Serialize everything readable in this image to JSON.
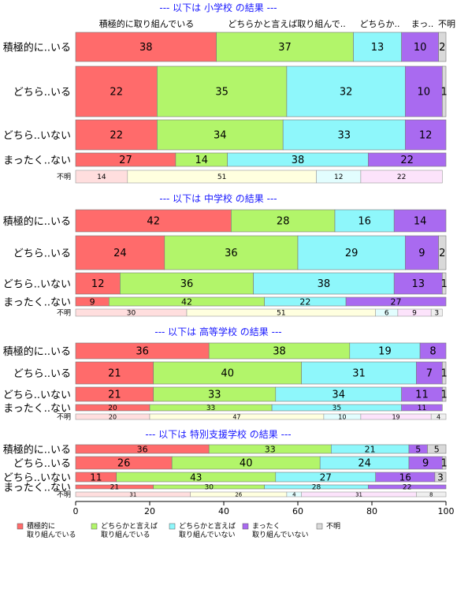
{
  "chart_data": {
    "type": "bar",
    "orientation": "horizontal",
    "stacked": true,
    "xlim": [
      0,
      100
    ],
    "x_ticks": [
      "0",
      "20",
      "40",
      "60",
      "80",
      "100"
    ],
    "column_headers": [
      "積極的に取り組んでいる",
      "どちらかと言えば取り組んで..",
      "どちらか..",
      "まっ..",
      "不明"
    ],
    "legend": [
      {
        "label_lines": [
          "積極的に",
          "取り組んでいる"
        ],
        "color": "#ff6b6b"
      },
      {
        "label_lines": [
          "どちらかと言えば",
          "取り組んでいる"
        ],
        "color": "#b2f56a"
      },
      {
        "label_lines": [
          "どちらかと言えば",
          "取り組んでいない"
        ],
        "color": "#8ef7fb"
      },
      {
        "label_lines": [
          "まったく",
          "取り組んでいない"
        ],
        "color": "#a96af0"
      },
      {
        "label_lines": [
          "不明"
        ],
        "color": "#d9d9d9"
      }
    ],
    "panels": [
      {
        "title": "--- 以下は 小学校 の結果 ---",
        "rows": [
          {
            "label": "積極的に..いる",
            "values": [
              38,
              37,
              13,
              10,
              2
            ],
            "labels": [
              "38",
              "37",
              "13",
              "10",
              "2"
            ]
          },
          {
            "label": "どちら..いる",
            "values": [
              22,
              35,
              32,
              10,
              1
            ],
            "labels": [
              "22",
              "35",
              "32",
              "10",
              "1"
            ]
          },
          {
            "label": "どちら..いない",
            "values": [
              22,
              34,
              33,
              12,
              0
            ],
            "labels": [
              "22",
              "34",
              "33",
              "12",
              ""
            ]
          },
          {
            "label": "まったく..ない",
            "values": [
              27,
              14,
              38,
              22,
              0
            ],
            "labels": [
              "27",
              "14",
              "38",
              "22",
              ""
            ]
          },
          {
            "label": "不明",
            "values": [
              14,
              51,
              12,
              22,
              0
            ],
            "labels": [
              "14",
              "51",
              "12",
              "22",
              ""
            ],
            "pale": true
          }
        ]
      },
      {
        "title": "--- 以下は 中学校 の結果 ---",
        "rows": [
          {
            "label": "積極的に..いる",
            "values": [
              42,
              28,
              16,
              14,
              0
            ],
            "labels": [
              "42",
              "28",
              "16",
              "14",
              ""
            ]
          },
          {
            "label": "どちら..いる",
            "values": [
              24,
              36,
              29,
              9,
              2
            ],
            "labels": [
              "24",
              "36",
              "29",
              "9",
              "2"
            ]
          },
          {
            "label": "どちら..いない",
            "values": [
              12,
              36,
              38,
              13,
              1
            ],
            "labels": [
              "12",
              "36",
              "38",
              "13",
              "1"
            ]
          },
          {
            "label": "まったく..ない",
            "values": [
              9,
              42,
              22,
              27,
              0
            ],
            "labels": [
              "9",
              "42",
              "22",
              "27",
              ""
            ]
          },
          {
            "label": "不明",
            "values": [
              30,
              51,
              6,
              9,
              3
            ],
            "labels": [
              "30",
              "51",
              "6",
              "9",
              "3"
            ],
            "pale": true
          }
        ]
      },
      {
        "title": "--- 以下は 高等学校 の結果 ---",
        "rows": [
          {
            "label": "積極的に..いる",
            "values": [
              36,
              38,
              19,
              8,
              0
            ],
            "labels": [
              "36",
              "38",
              "19",
              "8",
              ""
            ]
          },
          {
            "label": "どちら..いる",
            "values": [
              21,
              40,
              31,
              7,
              1
            ],
            "labels": [
              "21",
              "40",
              "31",
              "7",
              "1"
            ]
          },
          {
            "label": "どちら..いない",
            "values": [
              21,
              33,
              34,
              11,
              1
            ],
            "labels": [
              "21",
              "33",
              "34",
              "11",
              "1"
            ]
          },
          {
            "label": "まったく..ない",
            "values": [
              20,
              33,
              35,
              11,
              0
            ],
            "labels": [
              "20",
              "33",
              "35",
              "11",
              ""
            ]
          },
          {
            "label": "不明",
            "values": [
              20,
              47,
              10,
              19,
              4
            ],
            "labels": [
              "20",
              "47",
              "10",
              "19",
              "4"
            ],
            "pale": true
          }
        ]
      },
      {
        "title": "--- 以下は 特別支援学校 の結果 ---",
        "rows": [
          {
            "label": "積極的に..いる",
            "values": [
              36,
              33,
              21,
              5,
              5
            ],
            "labels": [
              "36",
              "33",
              "21",
              "5",
              "5"
            ]
          },
          {
            "label": "どちら..いる",
            "values": [
              26,
              40,
              24,
              9,
              1
            ],
            "labels": [
              "26",
              "40",
              "24",
              "9",
              "1"
            ]
          },
          {
            "label": "どちら..いない",
            "values": [
              11,
              43,
              27,
              16,
              3
            ],
            "labels": [
              "11",
              "43",
              "27",
              "16",
              "3"
            ]
          },
          {
            "label": "まったく..ない",
            "values": [
              21,
              30,
              28,
              22,
              0
            ],
            "labels": [
              "21",
              "30",
              "28",
              "22",
              ""
            ]
          },
          {
            "label": "不明",
            "values": [
              31,
              26,
              4,
              31,
              8
            ],
            "labels": [
              "31",
              "26",
              "4",
              "31",
              "8"
            ],
            "pale": true
          }
        ]
      }
    ]
  }
}
